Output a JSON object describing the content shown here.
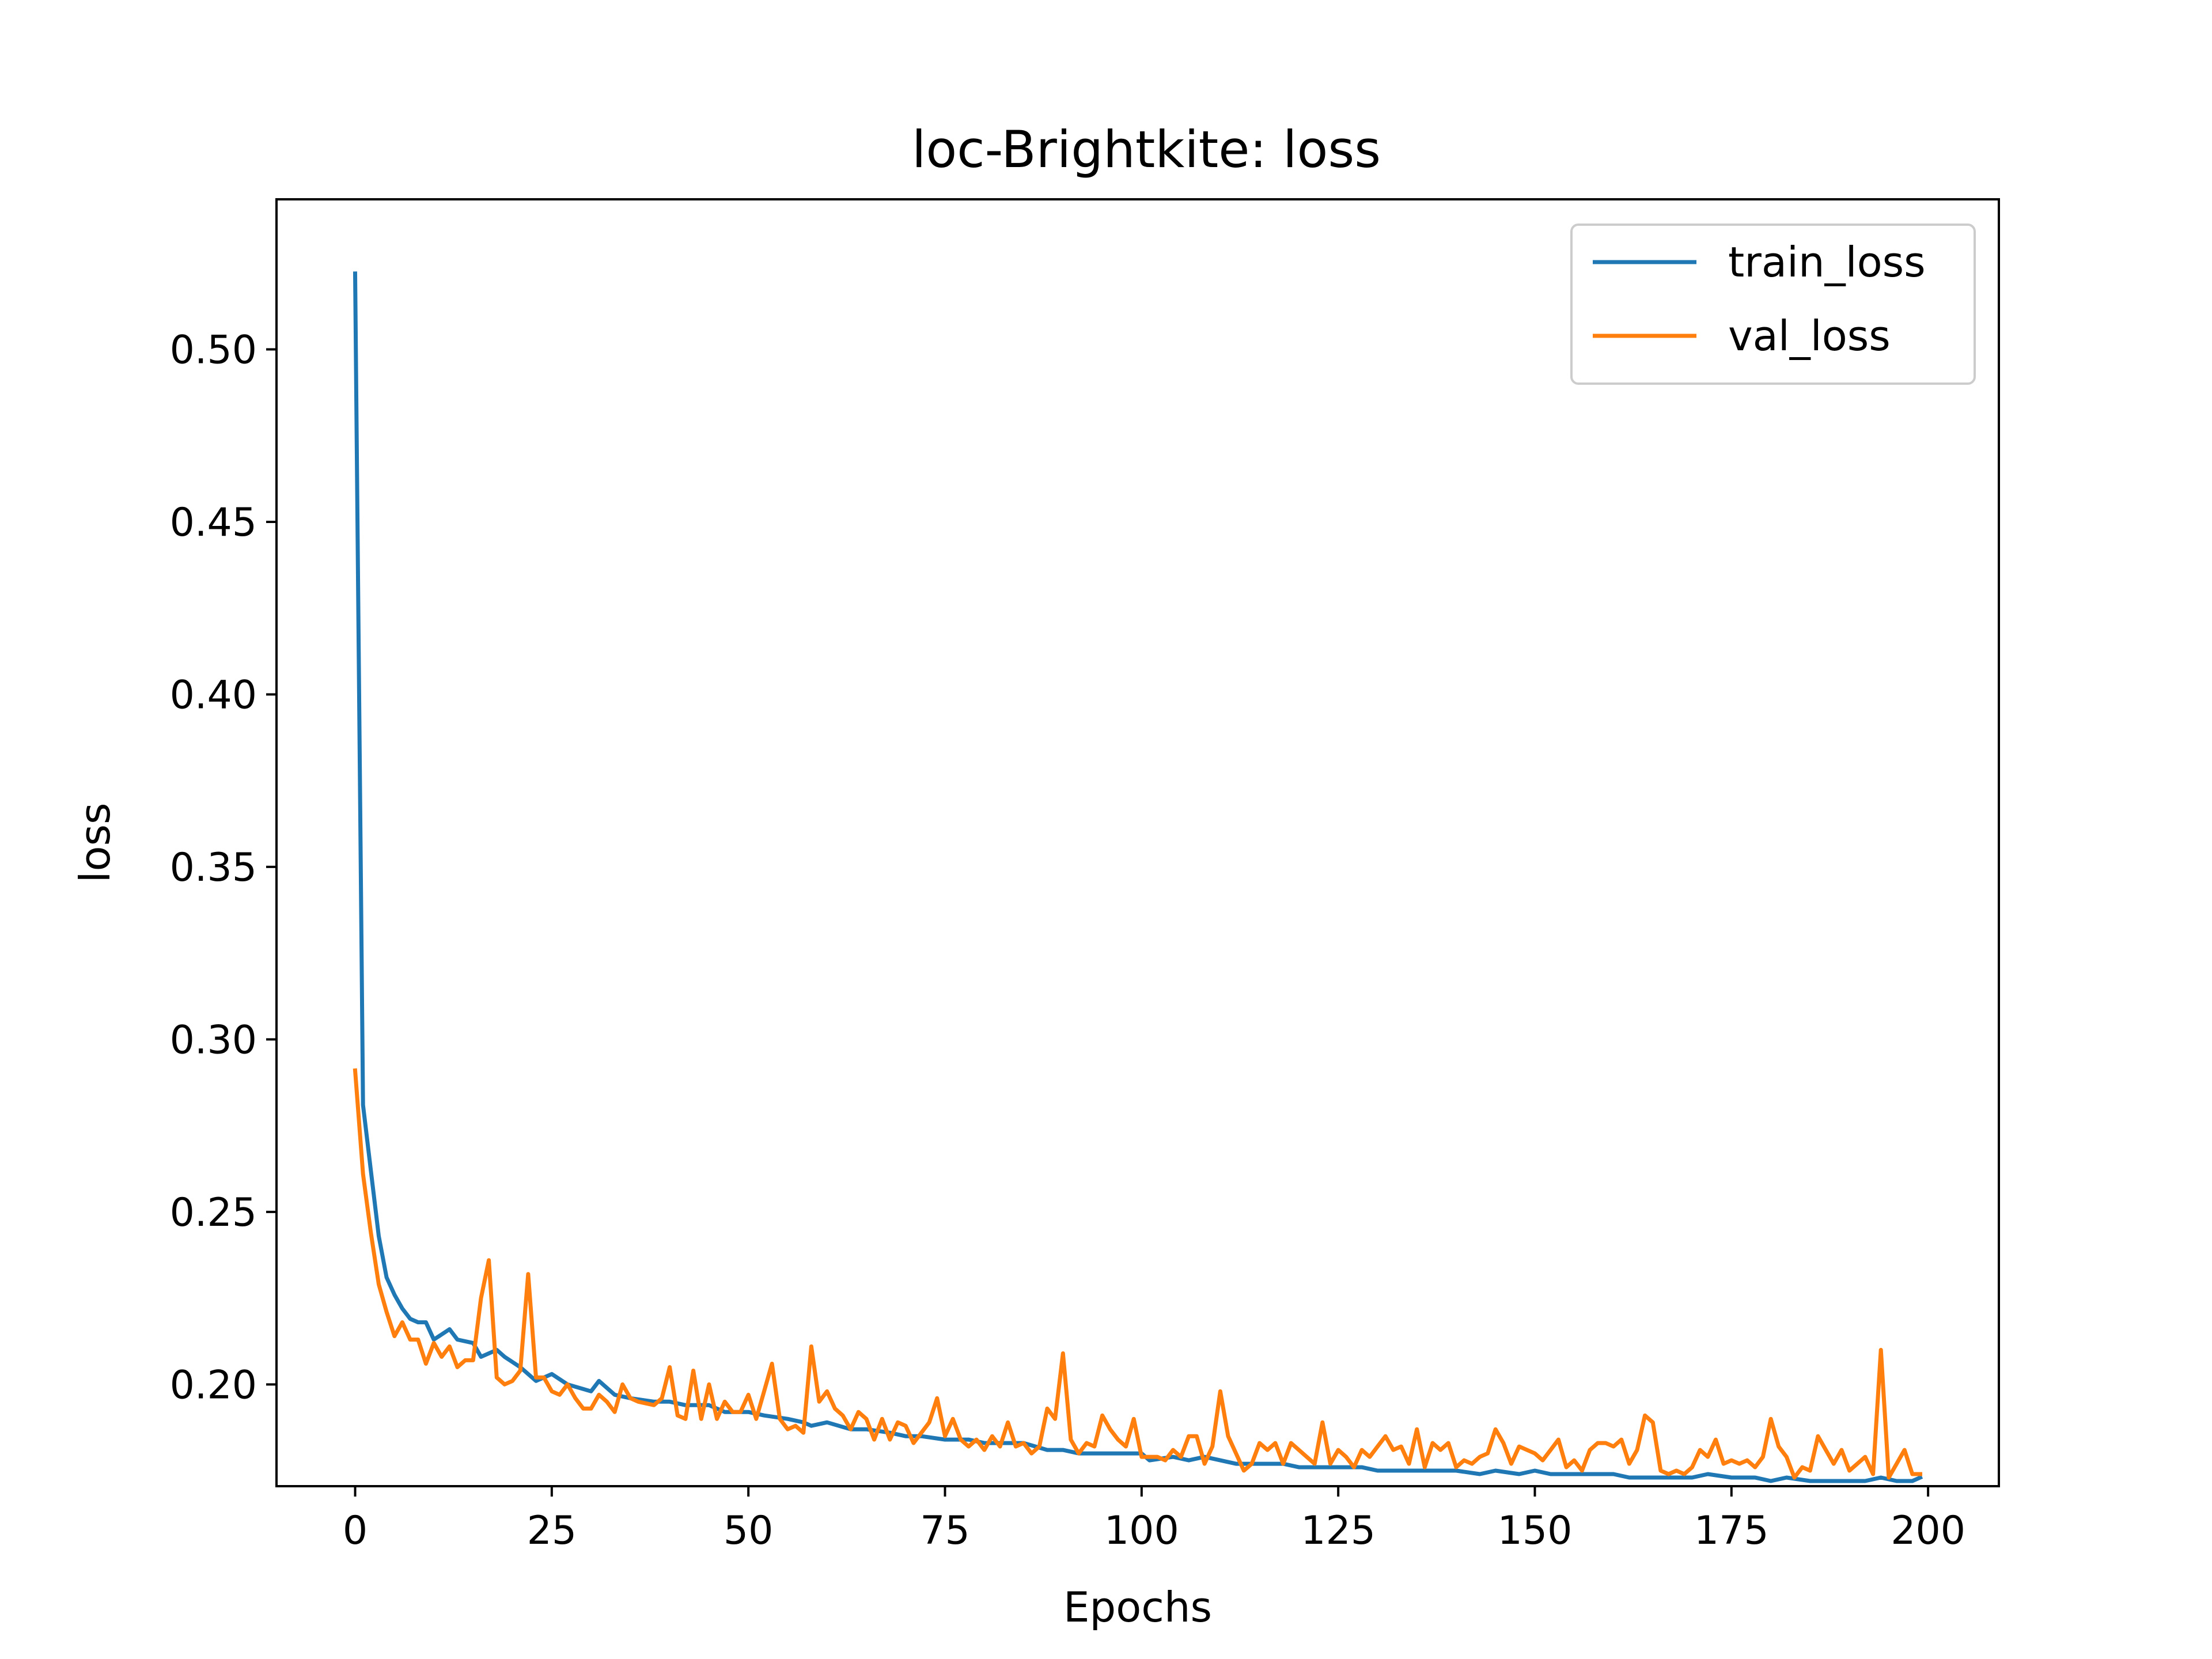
{
  "chart_data": {
    "type": "line",
    "title": "loc-Brightkite: loss",
    "xlabel": "Epochs",
    "ylabel": "loss",
    "xlim": [
      -10,
      209
    ],
    "ylim": [
      0.1705,
      0.5435
    ],
    "xticks": [
      0,
      25,
      50,
      75,
      100,
      125,
      150,
      175,
      200
    ],
    "xtick_labels": [
      "0",
      "25",
      "50",
      "75",
      "100",
      "125",
      "150",
      "175",
      "200"
    ],
    "yticks": [
      0.2,
      0.25,
      0.3,
      0.35,
      0.4,
      0.45,
      0.5
    ],
    "ytick_labels": [
      "0.20",
      "0.25",
      "0.30",
      "0.35",
      "0.40",
      "0.45",
      "0.50"
    ],
    "grid": false,
    "legend": "top-right",
    "series": [
      {
        "name": "train_loss",
        "color": "#1f77b4",
        "points": [
          [
            0,
            0.522
          ],
          [
            1,
            0.281
          ],
          [
            2,
            0.262
          ],
          [
            3,
            0.243
          ],
          [
            4,
            0.231
          ],
          [
            5,
            0.226
          ],
          [
            6,
            0.222
          ],
          [
            7,
            0.219
          ],
          [
            8,
            0.218
          ],
          [
            9,
            0.218
          ],
          [
            10,
            0.213
          ],
          [
            12,
            0.216
          ],
          [
            13,
            0.213
          ],
          [
            15,
            0.212
          ],
          [
            16,
            0.208
          ],
          [
            18,
            0.21
          ],
          [
            19,
            0.208
          ],
          [
            21,
            0.205
          ],
          [
            23,
            0.201
          ],
          [
            25,
            0.203
          ],
          [
            27,
            0.2
          ],
          [
            30,
            0.198
          ],
          [
            31,
            0.201
          ],
          [
            33,
            0.197
          ],
          [
            35,
            0.196
          ],
          [
            38,
            0.195
          ],
          [
            40,
            0.195
          ],
          [
            42,
            0.194
          ],
          [
            45,
            0.194
          ],
          [
            47,
            0.192
          ],
          [
            50,
            0.192
          ],
          [
            52,
            0.191
          ],
          [
            55,
            0.19
          ],
          [
            57,
            0.189
          ],
          [
            58,
            0.188
          ],
          [
            60,
            0.189
          ],
          [
            63,
            0.187
          ],
          [
            65,
            0.187
          ],
          [
            68,
            0.186
          ],
          [
            70,
            0.185
          ],
          [
            72,
            0.185
          ],
          [
            75,
            0.184
          ],
          [
            78,
            0.184
          ],
          [
            80,
            0.183
          ],
          [
            82,
            0.183
          ],
          [
            85,
            0.183
          ],
          [
            88,
            0.181
          ],
          [
            90,
            0.181
          ],
          [
            92,
            0.18
          ],
          [
            95,
            0.18
          ],
          [
            98,
            0.18
          ],
          [
            100,
            0.18
          ],
          [
            101,
            0.178
          ],
          [
            104,
            0.179
          ],
          [
            106,
            0.178
          ],
          [
            108,
            0.179
          ],
          [
            110,
            0.178
          ],
          [
            112,
            0.177
          ],
          [
            115,
            0.177
          ],
          [
            118,
            0.177
          ],
          [
            120,
            0.176
          ],
          [
            123,
            0.176
          ],
          [
            125,
            0.176
          ],
          [
            128,
            0.176
          ],
          [
            130,
            0.175
          ],
          [
            133,
            0.175
          ],
          [
            135,
            0.175
          ],
          [
            138,
            0.175
          ],
          [
            140,
            0.175
          ],
          [
            143,
            0.174
          ],
          [
            145,
            0.175
          ],
          [
            148,
            0.174
          ],
          [
            150,
            0.175
          ],
          [
            152,
            0.174
          ],
          [
            155,
            0.174
          ],
          [
            158,
            0.174
          ],
          [
            160,
            0.174
          ],
          [
            162,
            0.173
          ],
          [
            165,
            0.173
          ],
          [
            168,
            0.173
          ],
          [
            170,
            0.173
          ],
          [
            172,
            0.174
          ],
          [
            175,
            0.173
          ],
          [
            178,
            0.173
          ],
          [
            180,
            0.172
          ],
          [
            182,
            0.173
          ],
          [
            185,
            0.172
          ],
          [
            188,
            0.172
          ],
          [
            190,
            0.172
          ],
          [
            192,
            0.172
          ],
          [
            194,
            0.173
          ],
          [
            196,
            0.172
          ],
          [
            198,
            0.172
          ],
          [
            199,
            0.173
          ]
        ]
      },
      {
        "name": "val_loss",
        "color": "#ff7f0e",
        "points": [
          [
            0,
            0.291
          ],
          [
            1,
            0.261
          ],
          [
            2,
            0.244
          ],
          [
            3,
            0.229
          ],
          [
            4,
            0.221
          ],
          [
            5,
            0.214
          ],
          [
            6,
            0.218
          ],
          [
            7,
            0.213
          ],
          [
            8,
            0.213
          ],
          [
            9,
            0.206
          ],
          [
            10,
            0.212
          ],
          [
            11,
            0.208
          ],
          [
            12,
            0.211
          ],
          [
            13,
            0.205
          ],
          [
            14,
            0.207
          ],
          [
            15,
            0.207
          ],
          [
            16,
            0.225
          ],
          [
            17,
            0.236
          ],
          [
            18,
            0.202
          ],
          [
            19,
            0.2
          ],
          [
            20,
            0.201
          ],
          [
            21,
            0.204
          ],
          [
            22,
            0.232
          ],
          [
            23,
            0.202
          ],
          [
            24,
            0.202
          ],
          [
            25,
            0.198
          ],
          [
            26,
            0.197
          ],
          [
            27,
            0.2
          ],
          [
            28,
            0.196
          ],
          [
            29,
            0.193
          ],
          [
            30,
            0.193
          ],
          [
            31,
            0.197
          ],
          [
            32,
            0.195
          ],
          [
            33,
            0.192
          ],
          [
            34,
            0.2
          ],
          [
            35,
            0.196
          ],
          [
            36,
            0.195
          ],
          [
            38,
            0.194
          ],
          [
            39,
            0.196
          ],
          [
            40,
            0.205
          ],
          [
            41,
            0.191
          ],
          [
            42,
            0.19
          ],
          [
            43,
            0.204
          ],
          [
            44,
            0.19
          ],
          [
            45,
            0.2
          ],
          [
            46,
            0.19
          ],
          [
            47,
            0.195
          ],
          [
            48,
            0.192
          ],
          [
            49,
            0.192
          ],
          [
            50,
            0.197
          ],
          [
            51,
            0.19
          ],
          [
            52,
            0.198
          ],
          [
            53,
            0.206
          ],
          [
            54,
            0.19
          ],
          [
            55,
            0.187
          ],
          [
            56,
            0.188
          ],
          [
            57,
            0.186
          ],
          [
            58,
            0.211
          ],
          [
            59,
            0.195
          ],
          [
            60,
            0.198
          ],
          [
            61,
            0.193
          ],
          [
            62,
            0.191
          ],
          [
            63,
            0.187
          ],
          [
            64,
            0.192
          ],
          [
            65,
            0.19
          ],
          [
            66,
            0.184
          ],
          [
            67,
            0.19
          ],
          [
            68,
            0.184
          ],
          [
            69,
            0.189
          ],
          [
            70,
            0.188
          ],
          [
            71,
            0.183
          ],
          [
            72,
            0.186
          ],
          [
            73,
            0.189
          ],
          [
            74,
            0.196
          ],
          [
            75,
            0.185
          ],
          [
            76,
            0.19
          ],
          [
            77,
            0.184
          ],
          [
            78,
            0.182
          ],
          [
            79,
            0.184
          ],
          [
            80,
            0.181
          ],
          [
            81,
            0.185
          ],
          [
            82,
            0.182
          ],
          [
            83,
            0.189
          ],
          [
            84,
            0.182
          ],
          [
            85,
            0.183
          ],
          [
            86,
            0.18
          ],
          [
            87,
            0.182
          ],
          [
            88,
            0.193
          ],
          [
            89,
            0.19
          ],
          [
            90,
            0.209
          ],
          [
            91,
            0.184
          ],
          [
            92,
            0.18
          ],
          [
            93,
            0.183
          ],
          [
            94,
            0.182
          ],
          [
            95,
            0.191
          ],
          [
            96,
            0.187
          ],
          [
            97,
            0.184
          ],
          [
            98,
            0.182
          ],
          [
            99,
            0.19
          ],
          [
            100,
            0.179
          ],
          [
            101,
            0.179
          ],
          [
            102,
            0.179
          ],
          [
            103,
            0.178
          ],
          [
            104,
            0.181
          ],
          [
            105,
            0.179
          ],
          [
            106,
            0.185
          ],
          [
            107,
            0.185
          ],
          [
            108,
            0.177
          ],
          [
            109,
            0.182
          ],
          [
            110,
            0.198
          ],
          [
            111,
            0.185
          ],
          [
            112,
            0.18
          ],
          [
            113,
            0.175
          ],
          [
            114,
            0.177
          ],
          [
            115,
            0.183
          ],
          [
            116,
            0.181
          ],
          [
            117,
            0.183
          ],
          [
            118,
            0.177
          ],
          [
            119,
            0.183
          ],
          [
            120,
            0.181
          ],
          [
            121,
            0.179
          ],
          [
            122,
            0.177
          ],
          [
            123,
            0.189
          ],
          [
            124,
            0.177
          ],
          [
            125,
            0.181
          ],
          [
            126,
            0.179
          ],
          [
            127,
            0.176
          ],
          [
            128,
            0.181
          ],
          [
            129,
            0.179
          ],
          [
            130,
            0.182
          ],
          [
            131,
            0.185
          ],
          [
            132,
            0.181
          ],
          [
            133,
            0.182
          ],
          [
            134,
            0.177
          ],
          [
            135,
            0.187
          ],
          [
            136,
            0.176
          ],
          [
            137,
            0.183
          ],
          [
            138,
            0.181
          ],
          [
            139,
            0.183
          ],
          [
            140,
            0.176
          ],
          [
            141,
            0.178
          ],
          [
            142,
            0.177
          ],
          [
            143,
            0.179
          ],
          [
            144,
            0.18
          ],
          [
            145,
            0.187
          ],
          [
            146,
            0.183
          ],
          [
            147,
            0.177
          ],
          [
            148,
            0.182
          ],
          [
            149,
            0.181
          ],
          [
            150,
            0.18
          ],
          [
            151,
            0.178
          ],
          [
            152,
            0.181
          ],
          [
            153,
            0.184
          ],
          [
            154,
            0.176
          ],
          [
            155,
            0.178
          ],
          [
            156,
            0.175
          ],
          [
            157,
            0.181
          ],
          [
            158,
            0.183
          ],
          [
            159,
            0.183
          ],
          [
            160,
            0.182
          ],
          [
            161,
            0.184
          ],
          [
            162,
            0.177
          ],
          [
            163,
            0.181
          ],
          [
            164,
            0.191
          ],
          [
            165,
            0.189
          ],
          [
            166,
            0.175
          ],
          [
            167,
            0.174
          ],
          [
            168,
            0.175
          ],
          [
            169,
            0.174
          ],
          [
            170,
            0.176
          ],
          [
            171,
            0.181
          ],
          [
            172,
            0.179
          ],
          [
            173,
            0.184
          ],
          [
            174,
            0.177
          ],
          [
            175,
            0.178
          ],
          [
            176,
            0.177
          ],
          [
            177,
            0.178
          ],
          [
            178,
            0.176
          ],
          [
            179,
            0.179
          ],
          [
            180,
            0.19
          ],
          [
            181,
            0.182
          ],
          [
            182,
            0.179
          ],
          [
            183,
            0.173
          ],
          [
            184,
            0.176
          ],
          [
            185,
            0.175
          ],
          [
            186,
            0.185
          ],
          [
            187,
            0.181
          ],
          [
            188,
            0.177
          ],
          [
            189,
            0.181
          ],
          [
            190,
            0.175
          ],
          [
            191,
            0.177
          ],
          [
            192,
            0.179
          ],
          [
            193,
            0.174
          ],
          [
            194,
            0.21
          ],
          [
            195,
            0.173
          ],
          [
            196,
            0.177
          ],
          [
            197,
            0.181
          ],
          [
            198,
            0.174
          ],
          [
            199,
            0.174
          ]
        ]
      }
    ]
  }
}
